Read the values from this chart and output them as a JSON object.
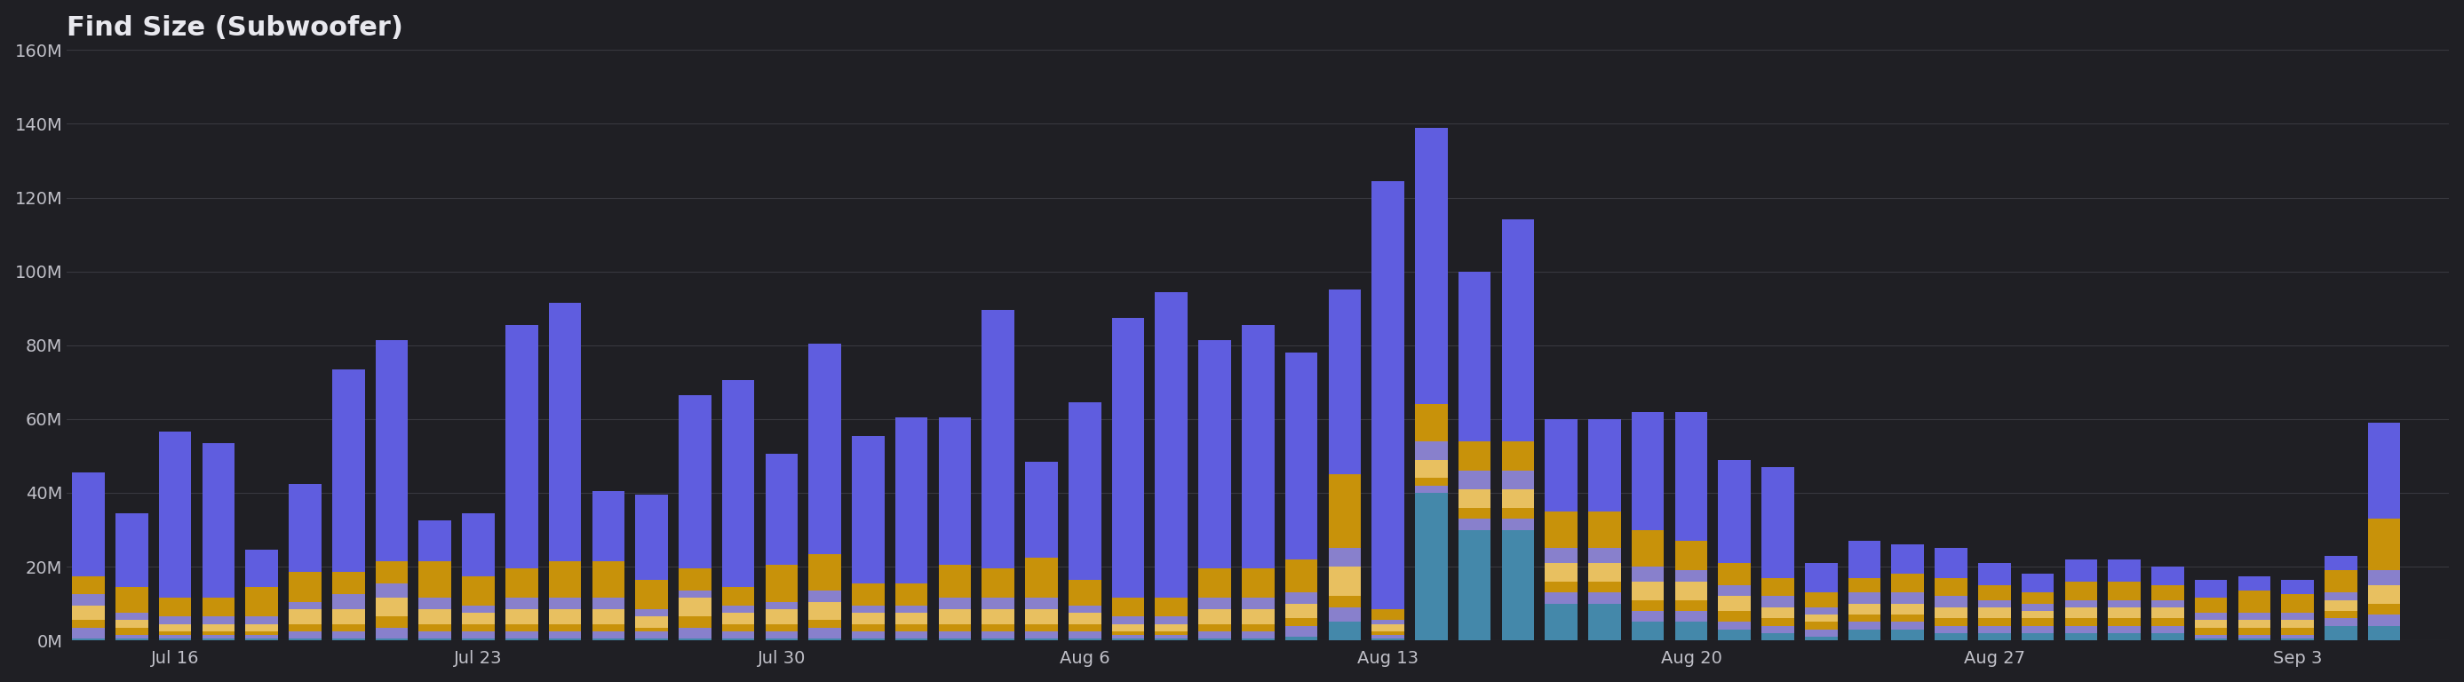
{
  "title": "Find Size (Subwoofer)",
  "background_color": "#1f1f24",
  "plot_bg_color": "#1f1f24",
  "grid_color": "#38383f",
  "text_color": "#c0c0c8",
  "title_color": "#e8e8ee",
  "ylim": [
    0,
    160000000
  ],
  "ytick_labels": [
    "0M",
    "20M",
    "40M",
    "60M",
    "80M",
    "100M",
    "120M",
    "140M",
    "160M"
  ],
  "ytick_values": [
    0,
    20000000,
    40000000,
    60000000,
    80000000,
    100000000,
    120000000,
    140000000,
    160000000
  ],
  "xtick_labels": [
    "Jul 16",
    "Jul 23",
    "Jul 30",
    "Aug 6",
    "Aug 13",
    "Aug 20",
    "Aug 27",
    "Sep 3"
  ],
  "colors": {
    "purple": "#5f5ddf",
    "gold": "#c8920a",
    "light_purple": "#8880cc",
    "cyan": "#4488aa",
    "light_gold": "#e8c060"
  },
  "bars": [
    {
      "x": 0,
      "v1": 28000000,
      "v2": 5000000,
      "v3": 3000000,
      "v4": 4000000,
      "v5": 2000000,
      "v6": 3000000,
      "v7": 500000
    },
    {
      "x": 1,
      "v1": 20000000,
      "v2": 7000000,
      "v3": 2000000,
      "v4": 2000000,
      "v5": 2000000,
      "v6": 1000000,
      "v7": 500000
    },
    {
      "x": 2,
      "v1": 45000000,
      "v2": 5000000,
      "v3": 2000000,
      "v4": 2000000,
      "v5": 1000000,
      "v6": 1000000,
      "v7": 500000
    },
    {
      "x": 3,
      "v1": 42000000,
      "v2": 5000000,
      "v3": 2000000,
      "v4": 2000000,
      "v5": 1000000,
      "v6": 1000000,
      "v7": 500000
    },
    {
      "x": 4,
      "v1": 10000000,
      "v2": 8000000,
      "v3": 2000000,
      "v4": 2000000,
      "v5": 1000000,
      "v6": 1000000,
      "v7": 500000
    },
    {
      "x": 5,
      "v1": 24000000,
      "v2": 8000000,
      "v3": 2000000,
      "v4": 4000000,
      "v5": 2000000,
      "v6": 2000000,
      "v7": 500000
    },
    {
      "x": 6,
      "v1": 55000000,
      "v2": 6000000,
      "v3": 4000000,
      "v4": 4000000,
      "v5": 2000000,
      "v6": 2000000,
      "v7": 500000
    },
    {
      "x": 7,
      "v1": 60000000,
      "v2": 6000000,
      "v3": 4000000,
      "v4": 5000000,
      "v5": 3000000,
      "v6": 3000000,
      "v7": 500000
    },
    {
      "x": 8,
      "v1": 11000000,
      "v2": 10000000,
      "v3": 3000000,
      "v4": 4000000,
      "v5": 2000000,
      "v6": 2000000,
      "v7": 500000
    },
    {
      "x": 9,
      "v1": 17000000,
      "v2": 8000000,
      "v3": 2000000,
      "v4": 3000000,
      "v5": 2000000,
      "v6": 2000000,
      "v7": 500000
    },
    {
      "x": 10,
      "v1": 66000000,
      "v2": 8000000,
      "v3": 3000000,
      "v4": 4000000,
      "v5": 2000000,
      "v6": 2000000,
      "v7": 500000
    },
    {
      "x": 11,
      "v1": 70000000,
      "v2": 10000000,
      "v3": 3000000,
      "v4": 4000000,
      "v5": 2000000,
      "v6": 2000000,
      "v7": 500000
    },
    {
      "x": 12,
      "v1": 19000000,
      "v2": 10000000,
      "v3": 3000000,
      "v4": 4000000,
      "v5": 2000000,
      "v6": 2000000,
      "v7": 500000
    },
    {
      "x": 13,
      "v1": 23000000,
      "v2": 8000000,
      "v3": 2000000,
      "v4": 3000000,
      "v5": 1000000,
      "v6": 2000000,
      "v7": 500000
    },
    {
      "x": 14,
      "v1": 47000000,
      "v2": 6000000,
      "v3": 2000000,
      "v4": 5000000,
      "v5": 3000000,
      "v6": 3000000,
      "v7": 500000
    },
    {
      "x": 15,
      "v1": 56000000,
      "v2": 5000000,
      "v3": 2000000,
      "v4": 3000000,
      "v5": 2000000,
      "v6": 2000000,
      "v7": 500000
    },
    {
      "x": 16,
      "v1": 30000000,
      "v2": 10000000,
      "v3": 2000000,
      "v4": 4000000,
      "v5": 2000000,
      "v6": 2000000,
      "v7": 500000
    },
    {
      "x": 17,
      "v1": 57000000,
      "v2": 10000000,
      "v3": 3000000,
      "v4": 5000000,
      "v5": 2000000,
      "v6": 3000000,
      "v7": 500000
    },
    {
      "x": 18,
      "v1": 40000000,
      "v2": 6000000,
      "v3": 2000000,
      "v4": 3000000,
      "v5": 2000000,
      "v6": 2000000,
      "v7": 500000
    },
    {
      "x": 19,
      "v1": 45000000,
      "v2": 6000000,
      "v3": 2000000,
      "v4": 3000000,
      "v5": 2000000,
      "v6": 2000000,
      "v7": 500000
    },
    {
      "x": 20,
      "v1": 40000000,
      "v2": 9000000,
      "v3": 3000000,
      "v4": 4000000,
      "v5": 2000000,
      "v6": 2000000,
      "v7": 500000
    },
    {
      "x": 21,
      "v1": 70000000,
      "v2": 8000000,
      "v3": 3000000,
      "v4": 4000000,
      "v5": 2000000,
      "v6": 2000000,
      "v7": 500000
    },
    {
      "x": 22,
      "v1": 26000000,
      "v2": 11000000,
      "v3": 3000000,
      "v4": 4000000,
      "v5": 2000000,
      "v6": 2000000,
      "v7": 500000
    },
    {
      "x": 23,
      "v1": 48000000,
      "v2": 7000000,
      "v3": 2000000,
      "v4": 3000000,
      "v5": 2000000,
      "v6": 2000000,
      "v7": 500000
    },
    {
      "x": 24,
      "v1": 76000000,
      "v2": 5000000,
      "v3": 2000000,
      "v4": 2000000,
      "v5": 1000000,
      "v6": 1000000,
      "v7": 500000
    },
    {
      "x": 25,
      "v1": 83000000,
      "v2": 5000000,
      "v3": 2000000,
      "v4": 2000000,
      "v5": 1000000,
      "v6": 1000000,
      "v7": 500000
    },
    {
      "x": 26,
      "v1": 62000000,
      "v2": 8000000,
      "v3": 3000000,
      "v4": 4000000,
      "v5": 2000000,
      "v6": 2000000,
      "v7": 500000
    },
    {
      "x": 27,
      "v1": 66000000,
      "v2": 8000000,
      "v3": 3000000,
      "v4": 4000000,
      "v5": 2000000,
      "v6": 2000000,
      "v7": 500000
    },
    {
      "x": 28,
      "v1": 56000000,
      "v2": 9000000,
      "v3": 3000000,
      "v4": 4000000,
      "v5": 2000000,
      "v6": 3000000,
      "v7": 1000000
    },
    {
      "x": 29,
      "v1": 50000000,
      "v2": 20000000,
      "v3": 5000000,
      "v4": 8000000,
      "v5": 3000000,
      "v6": 4000000,
      "v7": 5000000
    },
    {
      "x": 30,
      "v1": 116000000,
      "v2": 3000000,
      "v3": 1000000,
      "v4": 2000000,
      "v5": 1000000,
      "v6": 1000000,
      "v7": 500000
    },
    {
      "x": 31,
      "v1": 75000000,
      "v2": 10000000,
      "v3": 5000000,
      "v4": 5000000,
      "v5": 2000000,
      "v6": 2000000,
      "v7": 40000000
    },
    {
      "x": 32,
      "v1": 46000000,
      "v2": 8000000,
      "v3": 5000000,
      "v4": 5000000,
      "v5": 3000000,
      "v6": 3000000,
      "v7": 30000000
    },
    {
      "x": 33,
      "v1": 60000000,
      "v2": 8000000,
      "v3": 5000000,
      "v4": 5000000,
      "v5": 3000000,
      "v6": 3000000,
      "v7": 30000000
    },
    {
      "x": 34,
      "v1": 25000000,
      "v2": 10000000,
      "v3": 4000000,
      "v4": 5000000,
      "v5": 3000000,
      "v6": 3000000,
      "v7": 10000000
    },
    {
      "x": 35,
      "v1": 25000000,
      "v2": 10000000,
      "v3": 4000000,
      "v4": 5000000,
      "v5": 3000000,
      "v6": 3000000,
      "v7": 10000000
    },
    {
      "x": 36,
      "v1": 32000000,
      "v2": 10000000,
      "v3": 4000000,
      "v4": 5000000,
      "v5": 3000000,
      "v6": 3000000,
      "v7": 5000000
    },
    {
      "x": 37,
      "v1": 35000000,
      "v2": 8000000,
      "v3": 3000000,
      "v4": 5000000,
      "v5": 3000000,
      "v6": 3000000,
      "v7": 5000000
    },
    {
      "x": 38,
      "v1": 28000000,
      "v2": 6000000,
      "v3": 3000000,
      "v4": 4000000,
      "v5": 3000000,
      "v6": 2000000,
      "v7": 3000000
    },
    {
      "x": 39,
      "v1": 30000000,
      "v2": 5000000,
      "v3": 3000000,
      "v4": 3000000,
      "v5": 2000000,
      "v6": 2000000,
      "v7": 2000000
    },
    {
      "x": 40,
      "v1": 8000000,
      "v2": 4000000,
      "v3": 2000000,
      "v4": 2000000,
      "v5": 2000000,
      "v6": 2000000,
      "v7": 1000000
    },
    {
      "x": 41,
      "v1": 10000000,
      "v2": 4000000,
      "v3": 3000000,
      "v4": 3000000,
      "v5": 2000000,
      "v6": 2000000,
      "v7": 3000000
    },
    {
      "x": 42,
      "v1": 8000000,
      "v2": 5000000,
      "v3": 3000000,
      "v4": 3000000,
      "v5": 2000000,
      "v6": 2000000,
      "v7": 3000000
    },
    {
      "x": 43,
      "v1": 8000000,
      "v2": 5000000,
      "v3": 3000000,
      "v4": 3000000,
      "v5": 2000000,
      "v6": 2000000,
      "v7": 2000000
    },
    {
      "x": 44,
      "v1": 6000000,
      "v2": 4000000,
      "v3": 2000000,
      "v4": 3000000,
      "v5": 2000000,
      "v6": 2000000,
      "v7": 2000000
    },
    {
      "x": 45,
      "v1": 5000000,
      "v2": 3000000,
      "v3": 2000000,
      "v4": 2000000,
      "v5": 2000000,
      "v6": 2000000,
      "v7": 2000000
    },
    {
      "x": 46,
      "v1": 6000000,
      "v2": 5000000,
      "v3": 2000000,
      "v4": 3000000,
      "v5": 2000000,
      "v6": 2000000,
      "v7": 2000000
    },
    {
      "x": 47,
      "v1": 6000000,
      "v2": 5000000,
      "v3": 2000000,
      "v4": 3000000,
      "v5": 2000000,
      "v6": 2000000,
      "v7": 2000000
    },
    {
      "x": 48,
      "v1": 5000000,
      "v2": 4000000,
      "v3": 2000000,
      "v4": 3000000,
      "v5": 2000000,
      "v6": 2000000,
      "v7": 2000000
    },
    {
      "x": 49,
      "v1": 5000000,
      "v2": 4000000,
      "v3": 2000000,
      "v4": 2000000,
      "v5": 2000000,
      "v6": 1000000,
      "v7": 500000
    },
    {
      "x": 50,
      "v1": 4000000,
      "v2": 6000000,
      "v3": 2000000,
      "v4": 2000000,
      "v5": 2000000,
      "v6": 1000000,
      "v7": 500000
    },
    {
      "x": 51,
      "v1": 4000000,
      "v2": 5000000,
      "v3": 2000000,
      "v4": 2000000,
      "v5": 2000000,
      "v6": 1000000,
      "v7": 500000
    },
    {
      "x": 52,
      "v1": 4000000,
      "v2": 6000000,
      "v3": 2000000,
      "v4": 3000000,
      "v5": 2000000,
      "v6": 2000000,
      "v7": 4000000
    },
    {
      "x": 53,
      "v1": 26000000,
      "v2": 14000000,
      "v3": 4000000,
      "v4": 5000000,
      "v5": 3000000,
      "v6": 3000000,
      "v7": 4000000
    }
  ],
  "xtick_positions": [
    2,
    9,
    16,
    23,
    30,
    37,
    44,
    51
  ]
}
